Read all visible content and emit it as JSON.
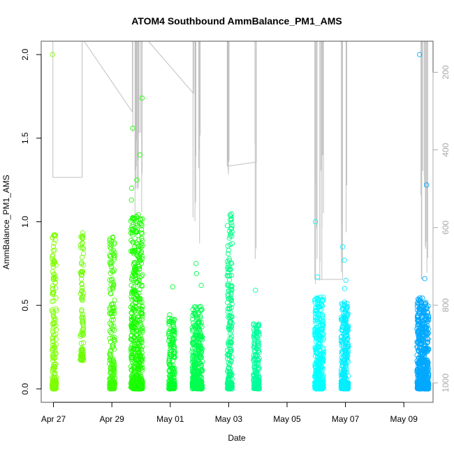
{
  "chart_data": {
    "type": "scatter",
    "title": "ATOM4 Southbound AmmBalance_PM1_AMS",
    "xlabel": "Date",
    "ylabel": "AmmBalance_PM1_AMS",
    "x_tick_labels": [
      "Apr 27",
      "Apr 29",
      "May 01",
      "May 03",
      "May 05",
      "May 07",
      "May 09"
    ],
    "x_tick_values": [
      0,
      2,
      4,
      6,
      8,
      10,
      12
    ],
    "xlim": [
      -0.42,
      13.0
    ],
    "ylim": [
      -0.08,
      2.08
    ],
    "y_tick_labels": [
      "0.0",
      "0.5",
      "1.0",
      "1.5",
      "2.0"
    ],
    "y_tick_values": [
      0.0,
      0.5,
      1.0,
      1.5,
      2.0
    ],
    "y2_tick_labels": [
      "200",
      "400",
      "600",
      "800",
      "1000"
    ],
    "y2_tick_values": [
      200,
      400,
      600,
      800,
      1000
    ],
    "y2lim_top_to_bottom": [
      120,
      1050
    ],
    "point_marker": "open-circle",
    "colors": {
      "series_gradient": [
        "#7fff00",
        "#1aff00",
        "#00ff66",
        "#00ff9c",
        "#00ffff",
        "#00d4ff",
        "#00a8ff"
      ],
      "altitude_trace": "#c0c0c0",
      "frame": "#555555"
    },
    "clusters": [
      {
        "x_start": -0.05,
        "x_end": 0.1,
        "y_max": 0.94,
        "y_min": 0.0,
        "color": "#7fff00",
        "outliers": [
          2.0
        ],
        "density": 0.9
      },
      {
        "x_start": 0.92,
        "x_end": 1.03,
        "y_max": 0.94,
        "y_min": 0.17,
        "color": "#6cff00",
        "outliers": [],
        "density": 0.6
      },
      {
        "x_start": 1.92,
        "x_end": 2.1,
        "y_max": 0.91,
        "y_min": 0.0,
        "color": "#3cff00",
        "outliers": [],
        "density": 0.85
      },
      {
        "x_start": 2.65,
        "x_end": 3.05,
        "y_max": 1.05,
        "y_min": 0.0,
        "color": "#1aff00",
        "outliers": [
          1.13,
          1.2,
          1.25,
          1.4,
          1.56,
          1.74
        ],
        "density": 1.0
      },
      {
        "x_start": 3.95,
        "x_end": 4.15,
        "y_max": 0.45,
        "y_min": 0.0,
        "color": "#00ff28",
        "outliers": [
          0.61
        ],
        "density": 0.7
      },
      {
        "x_start": 4.75,
        "x_end": 5.1,
        "y_max": 0.5,
        "y_min": 0.0,
        "color": "#00ff50",
        "outliers": [
          0.62,
          0.69,
          0.75
        ],
        "density": 0.8
      },
      {
        "x_start": 5.95,
        "x_end": 6.12,
        "y_max": 1.05,
        "y_min": 0.0,
        "color": "#00ff86",
        "outliers": [],
        "density": 0.9
      },
      {
        "x_start": 6.85,
        "x_end": 7.05,
        "y_max": 0.39,
        "y_min": 0.0,
        "color": "#00ff9c",
        "outliers": [
          0.59
        ],
        "density": 0.7
      },
      {
        "x_start": 8.95,
        "x_end": 9.25,
        "y_max": 0.55,
        "y_min": 0.0,
        "color": "#00ffff",
        "outliers": [
          0.67,
          1.0
        ],
        "density": 0.9
      },
      {
        "x_start": 9.85,
        "x_end": 10.1,
        "y_max": 0.52,
        "y_min": 0.0,
        "color": "#00eeff",
        "outliers": [
          0.6,
          0.65,
          0.77,
          0.85
        ],
        "density": 0.85
      },
      {
        "x_start": 12.45,
        "x_end": 12.85,
        "y_max": 0.55,
        "y_min": 0.0,
        "color": "#00a8ff",
        "outliers": [
          0.66,
          1.22,
          2.0
        ],
        "density": 1.0
      }
    ]
  }
}
